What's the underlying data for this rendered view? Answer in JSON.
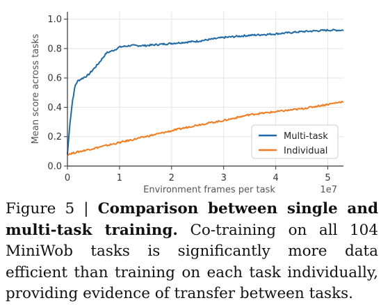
{
  "chart_data": {
    "type": "line",
    "xlabel": "Environment frames per task",
    "ylabel": "Mean score across tasks",
    "x_scale_label": "1e7",
    "xlim": [
      0,
      5.3
    ],
    "ylim": [
      0,
      1.05
    ],
    "x_ticks": [
      "0",
      "1",
      "2",
      "3",
      "4",
      "5"
    ],
    "y_ticks": [
      "0.0",
      "0.2",
      "0.4",
      "0.6",
      "0.8",
      "1.0"
    ],
    "grid": true,
    "legend_position": "bottom-right",
    "series": [
      {
        "name": "Multi-task",
        "color": "#1f6aa3",
        "x": [
          0,
          0.05,
          0.1,
          0.15,
          0.2,
          0.3,
          0.4,
          0.5,
          0.6,
          0.75,
          0.9,
          1.0,
          1.2,
          1.5,
          2.0,
          2.5,
          3.0,
          3.5,
          4.0,
          4.5,
          5.0,
          5.3
        ],
        "y": [
          0.08,
          0.3,
          0.45,
          0.55,
          0.58,
          0.6,
          0.62,
          0.66,
          0.7,
          0.77,
          0.79,
          0.81,
          0.82,
          0.82,
          0.835,
          0.85,
          0.875,
          0.89,
          0.9,
          0.915,
          0.925,
          0.925
        ]
      },
      {
        "name": "Individual",
        "color": "#f07d22",
        "x": [
          0,
          0.5,
          1.0,
          1.5,
          2.0,
          2.5,
          3.0,
          3.5,
          4.0,
          4.5,
          5.0,
          5.3
        ],
        "y": [
          0.08,
          0.12,
          0.16,
          0.2,
          0.24,
          0.28,
          0.31,
          0.35,
          0.37,
          0.39,
          0.42,
          0.44
        ]
      }
    ]
  },
  "caption": {
    "prefix": "Figure 5 | ",
    "title": "Comparison between single and multi-task training.",
    "body": " Co-training on all 104 MiniWob tasks is significantly more data efficient than training on each task individually, providing evidence of transfer between tasks."
  }
}
